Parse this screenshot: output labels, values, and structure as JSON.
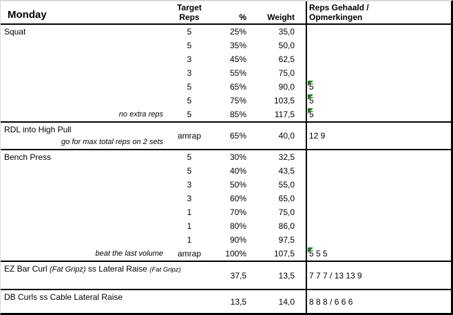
{
  "header": {
    "title": "Monday",
    "columns": {
      "target_reps": "Target Reps",
      "percent": "%",
      "weight": "Weight",
      "notes": "Reps Gehaald / Opmerkingen"
    }
  },
  "colors": {
    "flag_triangle": "#1e7b1e",
    "grid_line": "#000000",
    "sheet_edge": "#d9d9d9"
  },
  "sections": [
    {
      "type": "sets",
      "rows": [
        {
          "name": [
            {
              "text": "Squat"
            }
          ],
          "reps": "5",
          "pct": "25%",
          "weight": "35,0",
          "result": "",
          "flag": false
        },
        {
          "reps": "5",
          "pct": "35%",
          "weight": "50,0",
          "result": "",
          "flag": false
        },
        {
          "reps": "3",
          "pct": "45%",
          "weight": "62,5",
          "result": "",
          "flag": false
        },
        {
          "reps": "3",
          "pct": "55%",
          "weight": "75,0",
          "result": "",
          "flag": false
        },
        {
          "reps": "5",
          "pct": "65%",
          "weight": "90,0",
          "result": "5",
          "flag": true
        },
        {
          "reps": "5",
          "pct": "75%",
          "weight": "103,5",
          "result": "5",
          "flag": true
        },
        {
          "note": "no extra reps",
          "reps": "5",
          "pct": "85%",
          "weight": "117,5",
          "result": "5",
          "flag": true
        }
      ]
    },
    {
      "type": "merged",
      "name": [
        {
          "text": "RDL into High Pull"
        }
      ],
      "note": "go for max total reps on 2 sets",
      "reps": "amrap",
      "pct": "65%",
      "weight": "40,0",
      "result": "12 9",
      "flag": false
    },
    {
      "type": "sets",
      "rows": [
        {
          "name": [
            {
              "text": "Bench Press"
            }
          ],
          "reps": "5",
          "pct": "30%",
          "weight": "32,5",
          "result": "",
          "flag": false
        },
        {
          "reps": "5",
          "pct": "40%",
          "weight": "43,5",
          "result": "",
          "flag": false
        },
        {
          "reps": "3",
          "pct": "50%",
          "weight": "55,0",
          "result": "",
          "flag": false
        },
        {
          "reps": "3",
          "pct": "60%",
          "weight": "65,0",
          "result": "",
          "flag": false
        },
        {
          "reps": "1",
          "pct": "70%",
          "weight": "75,0",
          "result": "",
          "flag": false
        },
        {
          "reps": "1",
          "pct": "80%",
          "weight": "86,0",
          "result": "",
          "flag": false
        },
        {
          "reps": "1",
          "pct": "90%",
          "weight": "97,5",
          "result": "",
          "flag": false
        },
        {
          "note": "beat the last volume",
          "reps": "amrap",
          "pct": "100%",
          "weight": "107,5",
          "result": "5 5 5",
          "flag": true
        }
      ]
    },
    {
      "type": "superset",
      "name": [
        {
          "text": "EZ Bar Curl "
        },
        {
          "text": "(Fat Gripz)",
          "italic": true
        },
        {
          "text": "  ss Lateral Raise ",
          "italic": false
        },
        {
          "text": "(Fat Gripz)",
          "italic": true,
          "small": true
        }
      ],
      "reps": "",
      "pct": "37,5",
      "weight": "13,5",
      "result": "7 7 7 / 13 13 9",
      "flag": false
    },
    {
      "type": "superset",
      "name": [
        {
          "text": "DB Curls ss Cable Lateral Raise"
        }
      ],
      "reps": "",
      "pct": "13,5",
      "weight": "14,0",
      "result": "8 8 8 / 6 6 6",
      "flag": false
    }
  ]
}
